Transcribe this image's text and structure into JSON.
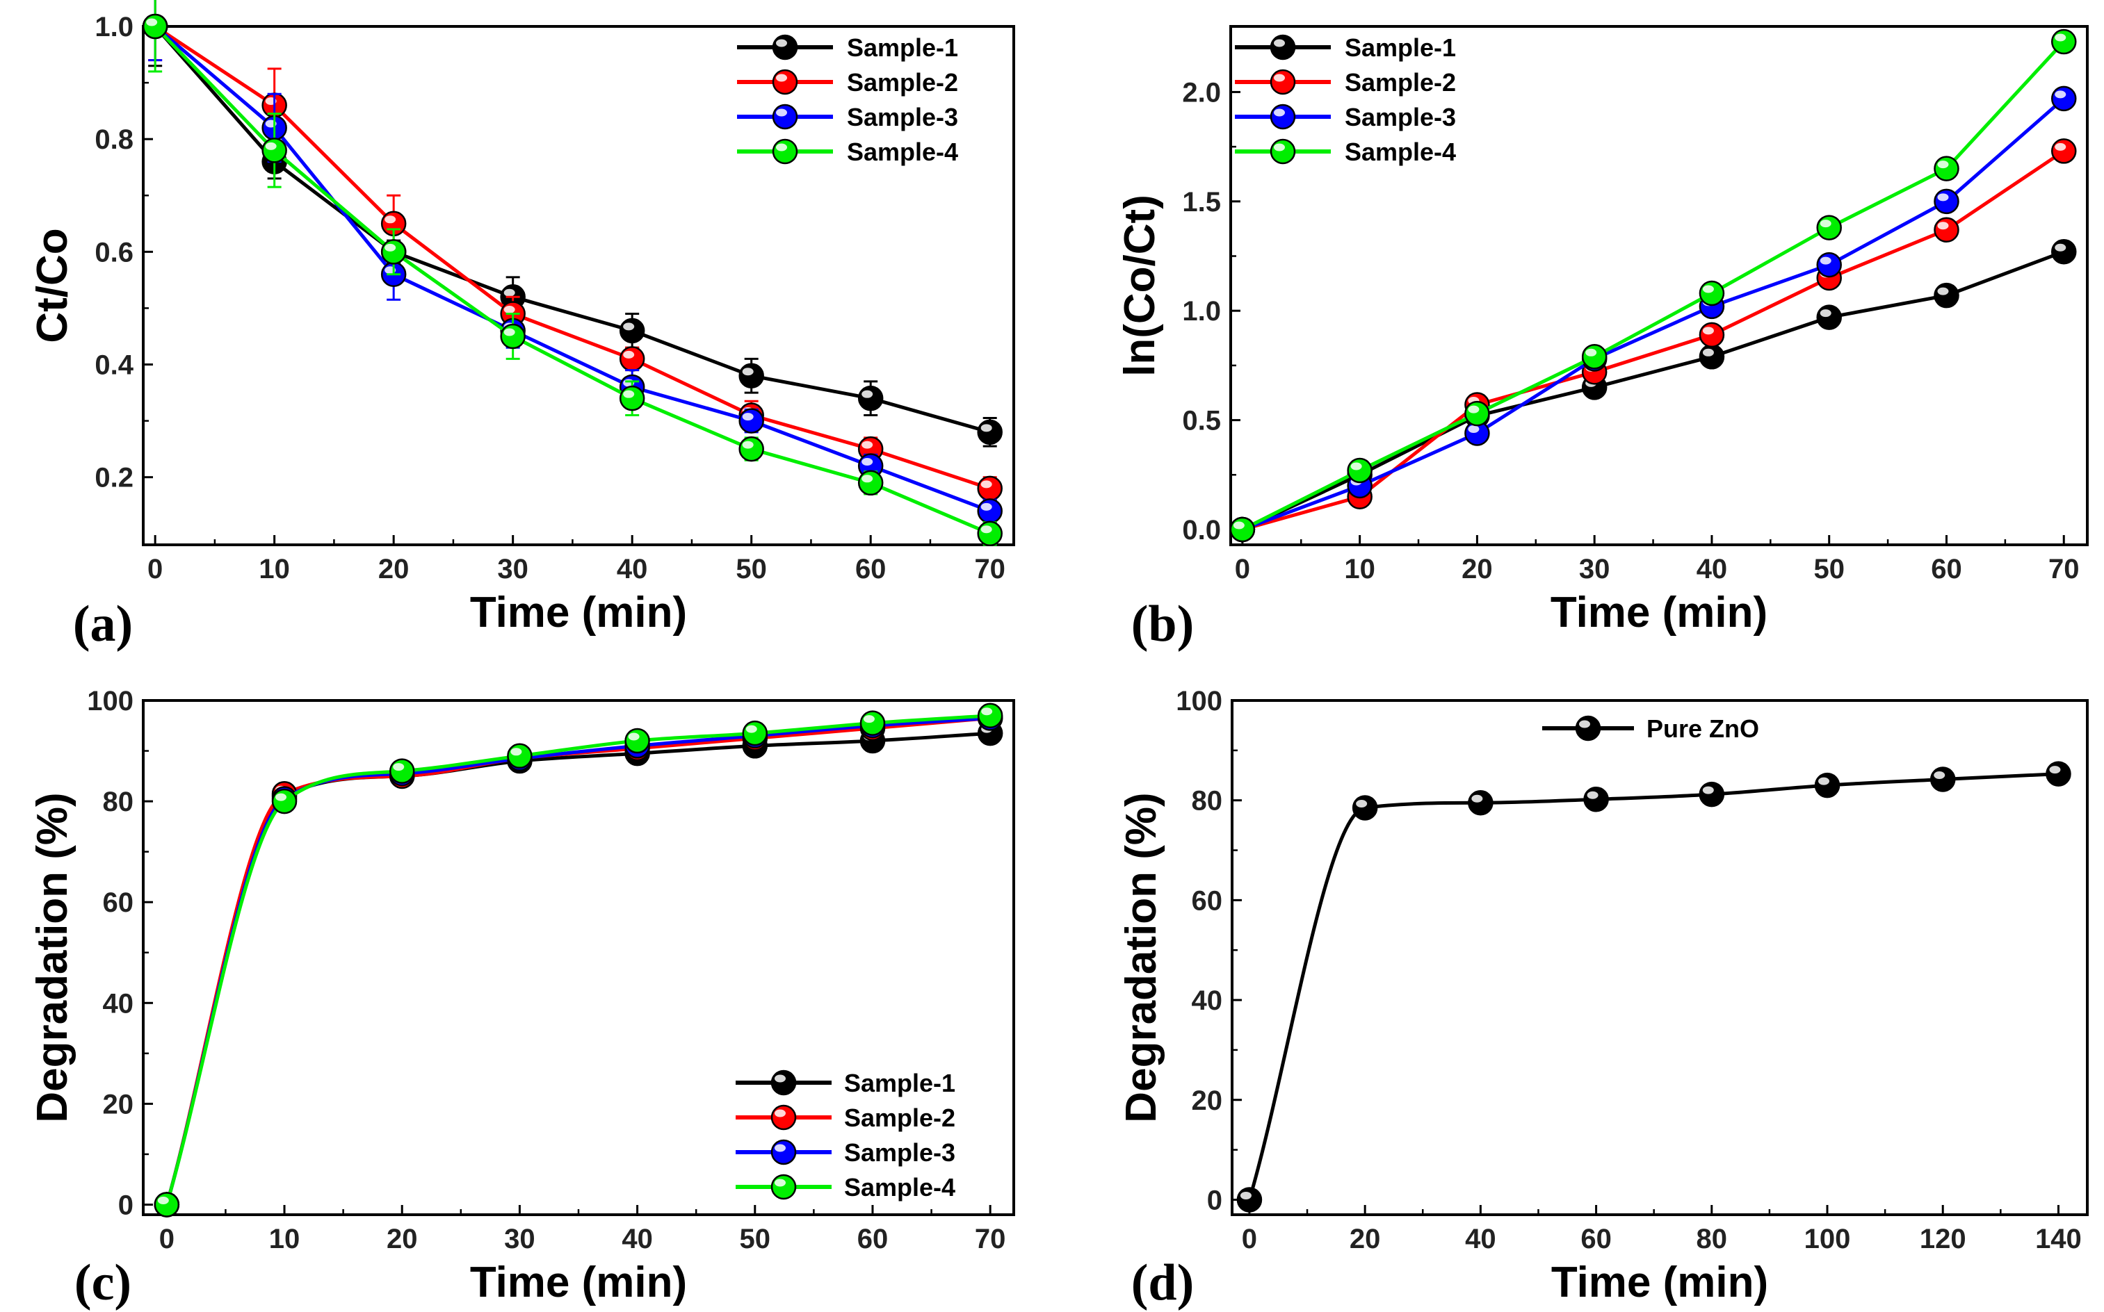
{
  "figure": {
    "panel_tags": [
      "(a)",
      "(b)",
      "(c)",
      "(d)"
    ]
  },
  "colors": {
    "Sample-1": "#000000",
    "Sample-2": "#ff0000",
    "Sample-3": "#0000ff",
    "Sample-4": "#00ee00",
    "Pure ZnO": "#000000"
  },
  "chart_data": [
    {
      "id": "a",
      "type": "line",
      "panel_label": "(a)",
      "xlabel": "Time (min)",
      "ylabel": "Ct/Co",
      "xlim": [
        -1,
        72
      ],
      "ylim": [
        0.08,
        1.0
      ],
      "xticks": [
        0,
        10,
        20,
        30,
        40,
        50,
        60,
        70
      ],
      "yticks": [
        0.2,
        0.4,
        0.6,
        0.8,
        1.0
      ],
      "ytick_labels": [
        "0.2",
        "0.4",
        "0.6",
        "0.8",
        "1.0"
      ],
      "legend_position": "top-right",
      "x": [
        0,
        10,
        20,
        30,
        40,
        50,
        60,
        70
      ],
      "series": [
        {
          "name": "Sample-1",
          "values": [
            1.0,
            0.76,
            0.6,
            0.52,
            0.46,
            0.38,
            0.34,
            0.28
          ],
          "errors": [
            0.07,
            0.03,
            0.02,
            0.035,
            0.03,
            0.03,
            0.03,
            0.025
          ]
        },
        {
          "name": "Sample-2",
          "values": [
            1.0,
            0.86,
            0.65,
            0.49,
            0.41,
            0.31,
            0.25,
            0.18
          ],
          "errors": [
            0.06,
            0.065,
            0.05,
            0.03,
            0.02,
            0.025,
            0.02,
            0.02
          ]
        },
        {
          "name": "Sample-3",
          "values": [
            1.0,
            0.82,
            0.56,
            0.46,
            0.36,
            0.3,
            0.22,
            0.14
          ],
          "errors": [
            0.06,
            0.06,
            0.045,
            0.03,
            0.03,
            0.02,
            0.02,
            0.02
          ]
        },
        {
          "name": "Sample-4",
          "values": [
            1.0,
            0.78,
            0.6,
            0.45,
            0.34,
            0.25,
            0.19,
            0.1
          ],
          "errors": [
            0.08,
            0.065,
            0.04,
            0.04,
            0.03,
            0.02,
            0.02,
            0.02
          ]
        }
      ]
    },
    {
      "id": "b",
      "type": "line",
      "panel_label": "(b)",
      "xlabel": "Time (min)",
      "ylabel": "ln(Co/Ct)",
      "xlim": [
        -1,
        72
      ],
      "ylim": [
        -0.07,
        2.3
      ],
      "xticks": [
        0,
        10,
        20,
        30,
        40,
        50,
        60,
        70
      ],
      "yticks": [
        0.0,
        0.5,
        1.0,
        1.5,
        2.0
      ],
      "ytick_labels": [
        "0.0",
        "0.5",
        "1.0",
        "1.5",
        "2.0"
      ],
      "legend_position": "top-left",
      "x": [
        0,
        10,
        20,
        30,
        40,
        50,
        60,
        70
      ],
      "series": [
        {
          "name": "Sample-1",
          "values": [
            0.0,
            0.25,
            0.52,
            0.65,
            0.79,
            0.97,
            1.07,
            1.27
          ]
        },
        {
          "name": "Sample-2",
          "values": [
            0.0,
            0.15,
            0.57,
            0.72,
            0.89,
            1.15,
            1.37,
            1.73
          ]
        },
        {
          "name": "Sample-3",
          "values": [
            0.0,
            0.2,
            0.44,
            0.78,
            1.02,
            1.21,
            1.5,
            1.97
          ]
        },
        {
          "name": "Sample-4",
          "values": [
            0.0,
            0.27,
            0.53,
            0.79,
            1.08,
            1.38,
            1.65,
            2.23
          ]
        }
      ]
    },
    {
      "id": "c",
      "type": "scatter",
      "panel_label": "(c)",
      "xlabel": "Time (min)",
      "ylabel": "Degradation (%)",
      "xlim": [
        -2,
        72
      ],
      "ylim": [
        -2,
        100
      ],
      "xticks": [
        0,
        10,
        20,
        30,
        40,
        50,
        60,
        70
      ],
      "yticks": [
        0,
        20,
        40,
        60,
        80,
        100
      ],
      "ytick_labels": [
        "0",
        "20",
        "40",
        "60",
        "80",
        "100"
      ],
      "legend_position": "bottom-right",
      "fit_curve": "smooth saturating curve through all points",
      "x": [
        0,
        10,
        20,
        30,
        40,
        50,
        60,
        70
      ],
      "series": [
        {
          "name": "Sample-1",
          "values": [
            0,
            81,
            85,
            88,
            89.5,
            91,
            92,
            93.5
          ]
        },
        {
          "name": "Sample-2",
          "values": [
            0,
            81.5,
            85,
            88.5,
            90.5,
            92.5,
            94.5,
            96.5
          ]
        },
        {
          "name": "Sample-3",
          "values": [
            0,
            80.5,
            85.5,
            88.5,
            91,
            93,
            95,
            96.5
          ]
        },
        {
          "name": "Sample-4",
          "values": [
            0,
            80,
            86,
            89,
            92,
            93.5,
            95.5,
            97
          ]
        }
      ]
    },
    {
      "id": "d",
      "type": "scatter",
      "panel_label": "(d)",
      "xlabel": "Time (min)",
      "ylabel": "Degradation (%)",
      "xlim": [
        -3,
        145
      ],
      "ylim": [
        -3,
        100
      ],
      "xticks": [
        0,
        20,
        40,
        60,
        80,
        100,
        120,
        140
      ],
      "yticks": [
        0,
        20,
        40,
        60,
        80,
        100
      ],
      "ytick_labels": [
        "0",
        "20",
        "40",
        "60",
        "80",
        "100"
      ],
      "legend_position": "top-center",
      "fit_curve": "smooth saturating curve through all points",
      "x": [
        0,
        20,
        40,
        60,
        80,
        100,
        120,
        140
      ],
      "series": [
        {
          "name": "Pure ZnO",
          "values": [
            0,
            78.5,
            79.5,
            80.2,
            81.2,
            83,
            84.2,
            85.3
          ]
        }
      ]
    }
  ]
}
